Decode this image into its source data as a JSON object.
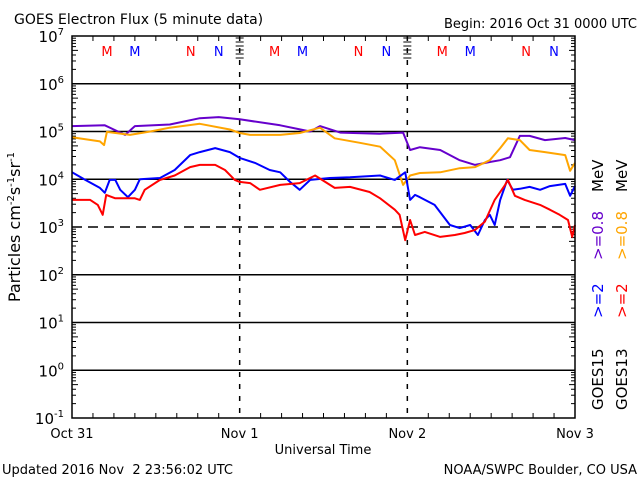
{
  "chart_data": {
    "type": "line",
    "title": "GOES Electron Flux (5 minute data)",
    "begin": "Begin: 2016 Oct 31 0000 UTC",
    "xlabel": "Universal Time",
    "ylabel": "Particles cm-2s-1sr-1",
    "ylabel_parts": [
      "Particles cm",
      "-2",
      "s",
      "-1",
      "sr",
      "-1"
    ],
    "yscale": "log",
    "ylim": [
      0.1,
      10000000
    ],
    "xlim_hours": [
      0,
      72
    ],
    "x_ticks": [
      {
        "hour": 0,
        "label": "Oct 31"
      },
      {
        "hour": 24,
        "label": "Nov 1"
      },
      {
        "hour": 48,
        "label": "Nov 2"
      },
      {
        "hour": 72,
        "label": "Nov 3"
      }
    ],
    "y_ticks": [
      {
        "exp": 7,
        "base": "10",
        "sup": "7"
      },
      {
        "exp": 6,
        "base": "10",
        "sup": "6"
      },
      {
        "exp": 5,
        "base": "10",
        "sup": "5"
      },
      {
        "exp": 4,
        "base": "10",
        "sup": "4"
      },
      {
        "exp": 3,
        "base": "10",
        "sup": "3"
      },
      {
        "exp": 2,
        "base": "10",
        "sup": "2"
      },
      {
        "exp": 1,
        "base": "10",
        "sup": "1"
      },
      {
        "exp": 0,
        "base": "10",
        "sup": "0"
      },
      {
        "exp": -1,
        "base": "10",
        "sup": "-1"
      }
    ],
    "threshold_dashed": 1000,
    "markers": [
      {
        "hour": 5,
        "label": "M",
        "color": "#ff0000"
      },
      {
        "hour": 9,
        "label": "M",
        "color": "#0000ff"
      },
      {
        "hour": 17,
        "label": "N",
        "color": "#ff0000"
      },
      {
        "hour": 21,
        "label": "N",
        "color": "#0000ff"
      },
      {
        "hour": 29,
        "label": "M",
        "color": "#ff0000"
      },
      {
        "hour": 33,
        "label": "M",
        "color": "#0000ff"
      },
      {
        "hour": 41,
        "label": "N",
        "color": "#ff0000"
      },
      {
        "hour": 45,
        "label": "N",
        "color": "#0000ff"
      },
      {
        "hour": 53,
        "label": "M",
        "color": "#ff0000"
      },
      {
        "hour": 57,
        "label": "M",
        "color": "#0000ff"
      },
      {
        "hour": 65,
        "label": "N",
        "color": "#ff0000"
      },
      {
        "hour": 69,
        "label": "N",
        "color": "#0000ff"
      }
    ],
    "legend": {
      "placement": "right",
      "columns": [
        {
          "satellite": "GOES15",
          "low": ">=2",
          "low_color": "#0000ff",
          "high": ">=0.8",
          "high_color": "#6600cc",
          "unit": "MeV"
        },
        {
          "satellite": "GOES13",
          "low": ">=2",
          "low_color": "#ff0000",
          "high": ">=0.8",
          "high_color": "#ffa500",
          "unit": "MeV"
        }
      ]
    },
    "series": [
      {
        "name": "GOES15 >=0.8 MeV",
        "color": "#6600cc",
        "points": [
          [
            0,
            130000.0
          ],
          [
            4.7,
            135000.0
          ],
          [
            7.6,
            85000.0
          ],
          [
            9,
            130000.0
          ],
          [
            14,
            140000.0
          ],
          [
            18.3,
            190000.0
          ],
          [
            21,
            200000.0
          ],
          [
            24,
            180000.0
          ],
          [
            29.8,
            135000.0
          ],
          [
            34.1,
            100000.0
          ],
          [
            35.5,
            130000.0
          ],
          [
            38.4,
            95000.0
          ],
          [
            44,
            90000.0
          ],
          [
            47.4,
            95000.0
          ],
          [
            48.4,
            41000.0
          ],
          [
            49.8,
            47000.0
          ],
          [
            52.7,
            41000.0
          ],
          [
            55.5,
            25000.0
          ],
          [
            57.7,
            20000.0
          ],
          [
            59.8,
            23000.0
          ],
          [
            61.3,
            25000.0
          ],
          [
            62.7,
            29000.0
          ],
          [
            64.1,
            81000.0
          ],
          [
            65.5,
            81000.0
          ],
          [
            67.7,
            66000.0
          ],
          [
            70.6,
            73000.0
          ],
          [
            72,
            66000.0
          ]
        ]
      },
      {
        "name": "GOES13 >=0.8 MeV",
        "color": "#ffa500",
        "points": [
          [
            0,
            76000.0
          ],
          [
            4.0,
            62000.0
          ],
          [
            4.6,
            52000.0
          ],
          [
            5.0,
            98000.0
          ],
          [
            8.3,
            85000.0
          ],
          [
            11.2,
            100000.0
          ],
          [
            14.0,
            120000.0
          ],
          [
            18.3,
            145000.0
          ],
          [
            22.6,
            110000.0
          ],
          [
            24,
            93000.0
          ],
          [
            25.5,
            85000.0
          ],
          [
            29.8,
            85000.0
          ],
          [
            32.6,
            93000.0
          ],
          [
            35.5,
            120000.0
          ],
          [
            37.6,
            72000.0
          ],
          [
            41.2,
            58000.0
          ],
          [
            44.1,
            48000.0
          ],
          [
            46.2,
            25000.0
          ],
          [
            47.4,
            7600.0
          ],
          [
            48.4,
            12000.0
          ],
          [
            49.8,
            13500.0
          ],
          [
            52.7,
            14000.0
          ],
          [
            55.5,
            17000.0
          ],
          [
            57.7,
            18000.0
          ],
          [
            59.8,
            25000.0
          ],
          [
            61.3,
            45000.0
          ],
          [
            62.4,
            72000.0
          ],
          [
            64.1,
            66000.0
          ],
          [
            65.5,
            41000.0
          ],
          [
            67.7,
            37000.0
          ],
          [
            70.6,
            32000.0
          ],
          [
            71.3,
            15000.0
          ],
          [
            72,
            22000.0
          ]
        ]
      },
      {
        "name": "GOES15 >=2 MeV",
        "color": "#0000ff",
        "points": [
          [
            0,
            14000.0
          ],
          [
            1.9,
            9700.0
          ],
          [
            4.0,
            6600.0
          ],
          [
            4.7,
            5200.0
          ],
          [
            5.4,
            9700.0
          ],
          [
            6.2,
            9700.0
          ],
          [
            6.9,
            6000.0
          ],
          [
            8.0,
            4200.0
          ],
          [
            9.0,
            6000.0
          ],
          [
            9.7,
            10000.0
          ],
          [
            12.6,
            10600.0
          ],
          [
            14.7,
            15600.0
          ],
          [
            16.9,
            32000.0
          ],
          [
            18.3,
            37000.0
          ],
          [
            20.5,
            45000.0
          ],
          [
            22.6,
            37000.0
          ],
          [
            24,
            28000.0
          ],
          [
            26.2,
            22000.0
          ],
          [
            28.3,
            15600.0
          ],
          [
            29.8,
            14000.0
          ],
          [
            31.2,
            8800.0
          ],
          [
            32.6,
            6000.0
          ],
          [
            34.1,
            9700.0
          ],
          [
            36.9,
            10600.0
          ],
          [
            39.8,
            11000.0
          ],
          [
            44.1,
            12000.0
          ],
          [
            46.2,
            9700.0
          ],
          [
            47.7,
            14000.0
          ],
          [
            48.4,
            3700.0
          ],
          [
            49.1,
            4700.0
          ],
          [
            49.8,
            4200.0
          ],
          [
            51.9,
            2900.0
          ],
          [
            54.1,
            1100.0
          ],
          [
            55.5,
            950
          ],
          [
            57.0,
            1100.0
          ],
          [
            58.1,
            680
          ],
          [
            59.1,
            1400.0
          ],
          [
            59.8,
            1800.0
          ],
          [
            60.5,
            1100.0
          ],
          [
            61.3,
            3700.0
          ],
          [
            62.3,
            9700.0
          ],
          [
            63.1,
            6000.0
          ],
          [
            64.1,
            6300.0
          ],
          [
            65.5,
            6900.0
          ],
          [
            67.0,
            6000.0
          ],
          [
            68.4,
            7200.0
          ],
          [
            70.6,
            8000.0
          ],
          [
            71.3,
            4500.0
          ],
          [
            72,
            7200.0
          ]
        ]
      },
      {
        "name": "GOES13 >=2 MeV",
        "color": "#ff0000",
        "points": [
          [
            0,
            3700.0
          ],
          [
            2.6,
            3700.0
          ],
          [
            3.7,
            2900.0
          ],
          [
            4.4,
            1800.0
          ],
          [
            4.9,
            4700.0
          ],
          [
            6.2,
            4000.0
          ],
          [
            9.0,
            4000.0
          ],
          [
            9.7,
            3700.0
          ],
          [
            10.4,
            6000.0
          ],
          [
            12.6,
            9700.0
          ],
          [
            14.7,
            12000.0
          ],
          [
            16.9,
            18000.0
          ],
          [
            18.3,
            20000.0
          ],
          [
            20.5,
            20000.0
          ],
          [
            21.9,
            15600.0
          ],
          [
            23.3,
            9700.0
          ],
          [
            24,
            8800.0
          ],
          [
            25.5,
            8300.0
          ],
          [
            26.9,
            6000.0
          ],
          [
            29.8,
            7600.0
          ],
          [
            32.6,
            8300.0
          ],
          [
            34.8,
            12000.0
          ],
          [
            37.6,
            6600.0
          ],
          [
            39.8,
            6900.0
          ],
          [
            42.6,
            5400.0
          ],
          [
            44.1,
            4000.0
          ],
          [
            46.2,
            2300.0
          ],
          [
            46.9,
            1800.0
          ],
          [
            47.7,
            530
          ],
          [
            48.4,
            1400.0
          ],
          [
            49.1,
            680
          ],
          [
            50.5,
            790
          ],
          [
            52.7,
            620
          ],
          [
            54.8,
            680
          ],
          [
            56.2,
            750
          ],
          [
            57.7,
            870
          ],
          [
            59.1,
            1300.0
          ],
          [
            60.5,
            3700.0
          ],
          [
            62.0,
            7600.0
          ],
          [
            62.4,
            9700.0
          ],
          [
            63.4,
            4500.0
          ],
          [
            64.8,
            3700.0
          ],
          [
            67.0,
            2900.0
          ],
          [
            68.4,
            2300.0
          ],
          [
            69.8,
            1800.0
          ],
          [
            71.0,
            1400.0
          ],
          [
            71.6,
            620
          ],
          [
            72,
            1100.0
          ]
        ]
      }
    ]
  },
  "footer": {
    "updated": "Updated 2016 Nov  2 23:56:02 UTC",
    "credit": "NOAA/SWPC Boulder, CO USA"
  }
}
